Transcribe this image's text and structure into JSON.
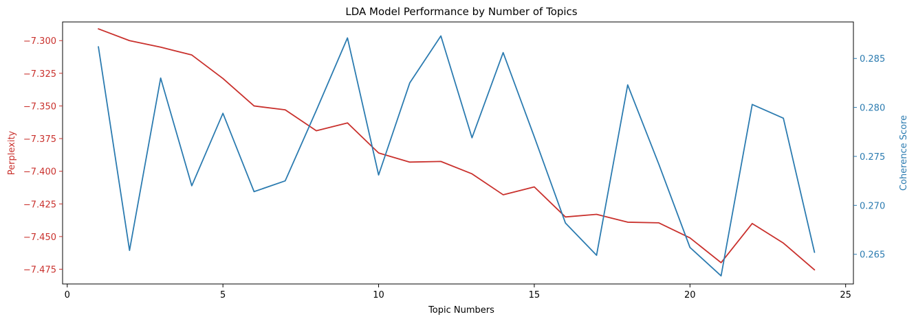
{
  "chart_data": {
    "type": "line",
    "title": "LDA Model Performance by Number of Topics",
    "xlabel": "Topic Numbers",
    "ylabel_left": "Perplexity",
    "ylabel_right": "Coherence Score",
    "x": [
      1,
      2,
      3,
      4,
      5,
      6,
      7,
      8,
      9,
      10,
      11,
      12,
      13,
      14,
      15,
      16,
      17,
      18,
      19,
      20,
      21,
      22,
      23,
      24
    ],
    "xlim": [
      -0.15,
      25.25
    ],
    "xticks": [
      0,
      5,
      10,
      15,
      20,
      25
    ],
    "ylim_left": [
      -7.4863,
      -7.2857
    ],
    "yticks_left": [
      -7.3,
      -7.325,
      -7.35,
      -7.375,
      -7.4,
      -7.425,
      -7.45,
      -7.475
    ],
    "ylim_right": [
      0.26197,
      0.28873
    ],
    "yticks_right": [
      0.265,
      0.27,
      0.275,
      0.28,
      0.285
    ],
    "grid": false,
    "series": [
      {
        "axis": "left",
        "color": "#c9302c",
        "values": [
          -7.291,
          -7.3,
          -7.305,
          -7.311,
          -7.329,
          -7.35,
          -7.353,
          -7.369,
          -7.363,
          -7.386,
          -7.393,
          -7.3925,
          -7.402,
          -7.418,
          -7.412,
          -7.435,
          -7.433,
          -7.439,
          -7.4395,
          -7.451,
          -7.47,
          -7.44,
          -7.455,
          -7.4755
        ]
      },
      {
        "axis": "right",
        "color": "#2b7bb0",
        "values": [
          0.2862,
          0.2654,
          0.283,
          0.272,
          0.2794,
          0.2714,
          0.2725,
          0.2797,
          0.2871,
          0.2731,
          0.2825,
          0.2873,
          0.2769,
          0.2856,
          0.277,
          0.2682,
          0.2649,
          0.2823,
          0.2742,
          0.2657,
          0.2628,
          0.2803,
          0.2789,
          0.2652
        ]
      }
    ]
  }
}
